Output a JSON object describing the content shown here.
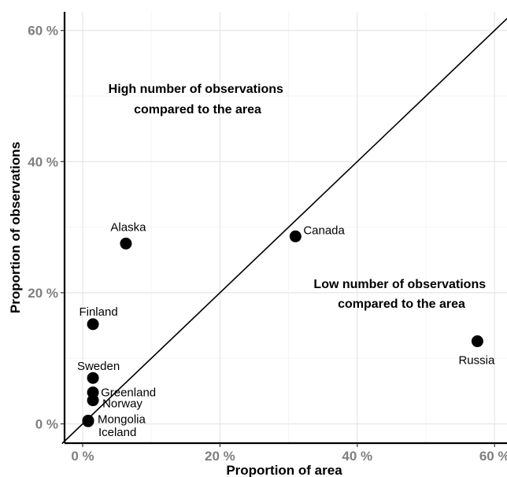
{
  "chart_data": {
    "type": "scatter",
    "title": "",
    "xlabel": "Proportion of area",
    "ylabel": "Proportion of observations",
    "xlim": [
      -3,
      62
    ],
    "ylim": [
      -3,
      63
    ],
    "x_ticks": [
      0,
      20,
      40,
      60
    ],
    "y_ticks": [
      0,
      20,
      40,
      60
    ],
    "x_tick_labels": [
      "0 %",
      "20 %",
      "40 %",
      "60 %"
    ],
    "y_tick_labels": [
      "0 %",
      "20 %",
      "40 %",
      "60 %"
    ],
    "grid": true,
    "reference_line": "y = x",
    "points": [
      {
        "label": "Alaska",
        "x": 6.3,
        "y": 27.5
      },
      {
        "label": "Canada",
        "x": 31.0,
        "y": 28.6
      },
      {
        "label": "Finland",
        "x": 1.5,
        "y": 15.2
      },
      {
        "label": "Sweden",
        "x": 1.5,
        "y": 7.0
      },
      {
        "label": "Greenland",
        "x": 1.5,
        "y": 4.8
      },
      {
        "label": "Norway",
        "x": 1.5,
        "y": 3.6
      },
      {
        "label": "Mongolia",
        "x": 0.8,
        "y": 0.5
      },
      {
        "label": "Iceland",
        "x": 0.8,
        "y": 0.4
      },
      {
        "label": "Russia",
        "x": 57.5,
        "y": 12.6
      }
    ],
    "annotations": [
      {
        "lines": [
          "High number of observations",
          "compared to the area"
        ]
      },
      {
        "lines": [
          "Low number of observations",
          "compared to the area"
        ]
      }
    ]
  }
}
